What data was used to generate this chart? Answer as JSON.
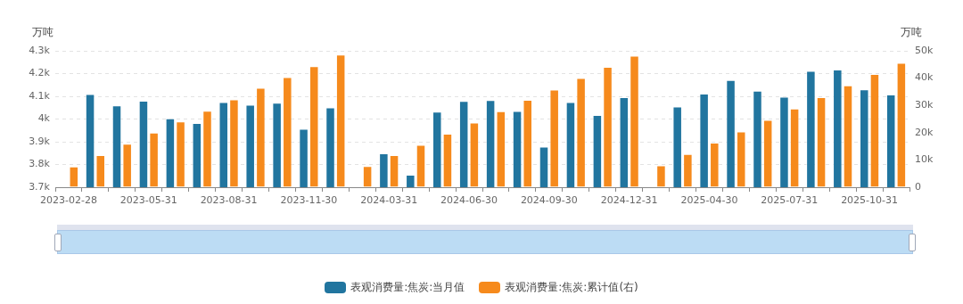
{
  "chart_data": {
    "type": "bar",
    "categories": [
      "2023-02-28",
      null,
      null,
      "2023-05-31",
      null,
      null,
      "2023-08-31",
      null,
      null,
      "2023-11-30",
      null,
      null,
      "2024-03-31",
      null,
      null,
      "2024-06-30",
      null,
      null,
      "2024-09-30",
      null,
      null,
      "2024-12-31",
      null,
      null,
      "2025-04-30",
      null,
      null,
      "2025-07-31",
      null,
      null,
      "2025-10-31",
      null
    ],
    "series": [
      {
        "name": "表观消费量:焦炭:当月值",
        "color": "#21759f",
        "values": [
          null,
          4110,
          4060,
          4080,
          4003,
          3982,
          4075,
          4063,
          4072,
          3957,
          4051,
          null,
          3849,
          3755,
          4032,
          4079,
          4083,
          4035,
          3878,
          4075,
          4018,
          4096,
          null,
          4055,
          4112,
          4172,
          4125,
          4098,
          4212,
          4218,
          4130,
          4108
        ]
      },
      {
        "name": "表观消费量:焦炭:累计值(右)",
        "color": "#f68a1c",
        "axis": "y2",
        "values": [
          7600,
          11800,
          15900,
          20000,
          24100,
          28000,
          32200,
          36400,
          40400,
          44400,
          48600,
          7800,
          11800,
          15500,
          19600,
          23700,
          27900,
          32000,
          35800,
          40000,
          44100,
          48200,
          8000,
          12200,
          16300,
          20400,
          24700,
          28800,
          33000,
          37300,
          41500,
          45600
        ]
      }
    ],
    "ylabel": "万吨",
    "y2label": "万吨",
    "ylim": [
      3700,
      4300
    ],
    "yticks": [
      {
        "value": 3700,
        "label": "3.7k"
      },
      {
        "value": 3800,
        "label": "3.8k"
      },
      {
        "value": 3900,
        "label": "3.9k"
      },
      {
        "value": 4000,
        "label": "4k"
      },
      {
        "value": 4100,
        "label": "4.1k"
      },
      {
        "value": 4200,
        "label": "4.2k"
      },
      {
        "value": 4300,
        "label": "4.3k"
      }
    ],
    "y2lim": [
      0,
      50000
    ],
    "y2ticks": [
      0,
      {
        "value": 10000,
        "label": "10k"
      },
      {
        "value": 20000,
        "label": "20k"
      },
      {
        "value": 30000,
        "label": "30k"
      },
      {
        "value": 40000,
        "label": "40k"
      },
      {
        "value": 50000,
        "label": "50k"
      }
    ],
    "grid": "y",
    "legend": "bottom"
  }
}
